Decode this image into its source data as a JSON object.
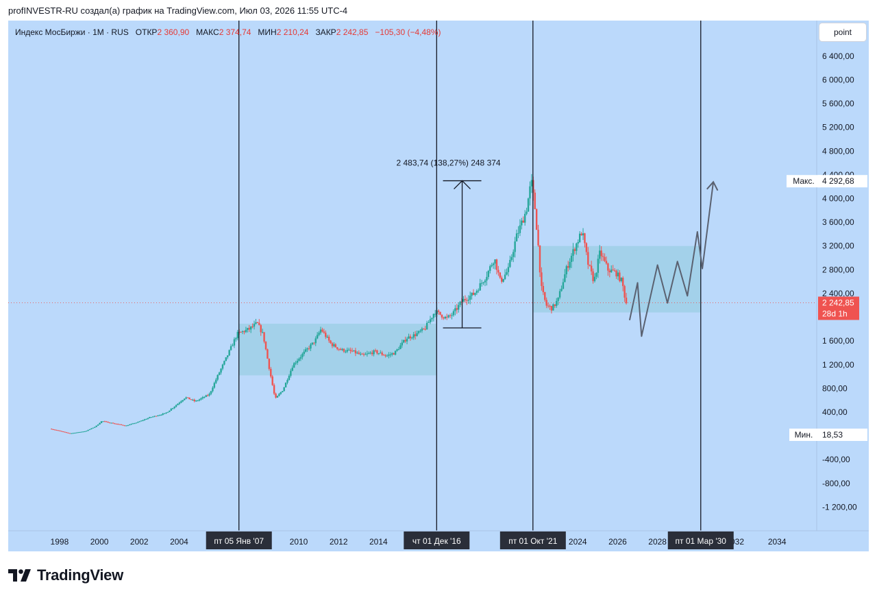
{
  "header": {
    "attribution": "profINVESTR-RU создал(а) график на TradingView.com, Июл 03, 2026 11:55 UTC-4"
  },
  "legend": {
    "symbol": "Индекс МосБиржи · 1M · RUS",
    "open_label": "ОТКР",
    "open": "2 360,90",
    "high_label": "МАКС",
    "high": "2 374,74",
    "low_label": "МИН",
    "low": "2 210,24",
    "close_label": "ЗАКР",
    "close": "2 242,85",
    "change": "−105,30 (−4,48%)"
  },
  "toolbar": {
    "point_label": "point"
  },
  "brand": {
    "name": "TradingView",
    "icon": "tradingview-logo-icon"
  },
  "colors": {
    "background": "#bbd9fb",
    "up": "#26a69a",
    "down": "#ef5350",
    "zone": "#9fcfe6",
    "line": "#131722",
    "projection": "#5a6170"
  },
  "chart_data": {
    "type": "candlestick",
    "timeframe": "1M",
    "xlim": [
      1996.8,
      2035.3
    ],
    "ylim": [
      -1600,
      7000
    ],
    "x_ticks": [
      {
        "year": 1998,
        "label": "1998"
      },
      {
        "year": 2000,
        "label": "2000"
      },
      {
        "year": 2002,
        "label": "2002"
      },
      {
        "year": 2004,
        "label": "2004"
      },
      {
        "year": 2010,
        "label": "2010"
      },
      {
        "year": 2012,
        "label": "2012"
      },
      {
        "year": 2014,
        "label": "2014"
      },
      {
        "year": 2024,
        "label": "2024"
      },
      {
        "year": 2026,
        "label": "2026"
      },
      {
        "year": 2028,
        "label": "2028"
      },
      {
        "year": 2032,
        "label": "032"
      },
      {
        "year": 2034,
        "label": "2034"
      }
    ],
    "y_ticks": [
      {
        "value": 6400,
        "label": "6 400,00"
      },
      {
        "value": 6000,
        "label": "6 000,00"
      },
      {
        "value": 5600,
        "label": "5 600,00"
      },
      {
        "value": 5200,
        "label": "5 200,00"
      },
      {
        "value": 4800,
        "label": "4 800,00"
      },
      {
        "value": 4400,
        "label": "4 400,00"
      },
      {
        "value": 4000,
        "label": "4 000,00"
      },
      {
        "value": 3600,
        "label": "3 600,00"
      },
      {
        "value": 3200,
        "label": "3 200,00"
      },
      {
        "value": 2800,
        "label": "2 800,00"
      },
      {
        "value": 2400,
        "label": "2 400,00"
      },
      {
        "value": 1600,
        "label": "1 600,00"
      },
      {
        "value": 1200,
        "label": "1 200,00"
      },
      {
        "value": 800,
        "label": "800,00"
      },
      {
        "value": 400,
        "label": "400,00"
      },
      {
        "value": -400,
        "label": "-400,00"
      },
      {
        "value": -800,
        "label": "-800,00"
      },
      {
        "value": -1200,
        "label": "-1 200,00"
      }
    ],
    "price_path": [
      [
        1997.6,
        120
      ],
      [
        1998.0,
        90
      ],
      [
        1998.6,
        40
      ],
      [
        1999.4,
        80
      ],
      [
        1999.9,
        160
      ],
      [
        2000.2,
        250
      ],
      [
        2000.8,
        210
      ],
      [
        2001.4,
        170
      ],
      [
        2002.0,
        230
      ],
      [
        2002.6,
        310
      ],
      [
        2003.4,
        380
      ],
      [
        2003.9,
        510
      ],
      [
        2004.4,
        650
      ],
      [
        2004.9,
        580
      ],
      [
        2005.6,
        700
      ],
      [
        2006.0,
        1000
      ],
      [
        2006.5,
        1350
      ],
      [
        2007.0,
        1720
      ],
      [
        2007.6,
        1800
      ],
      [
        2008.0,
        1900
      ],
      [
        2008.3,
        1700
      ],
      [
        2008.6,
        1150
      ],
      [
        2008.9,
        620
      ],
      [
        2009.3,
        780
      ],
      [
        2009.8,
        1200
      ],
      [
        2010.4,
        1420
      ],
      [
        2010.9,
        1600
      ],
      [
        2011.2,
        1800
      ],
      [
        2011.7,
        1550
      ],
      [
        2012.2,
        1450
      ],
      [
        2012.8,
        1420
      ],
      [
        2013.3,
        1350
      ],
      [
        2013.9,
        1420
      ],
      [
        2014.5,
        1350
      ],
      [
        2014.9,
        1400
      ],
      [
        2015.5,
        1650
      ],
      [
        2015.9,
        1700
      ],
      [
        2016.4,
        1800
      ],
      [
        2016.92,
        2100
      ],
      [
        2017.5,
        1980
      ],
      [
        2017.8,
        2050
      ],
      [
        2018.3,
        2280
      ],
      [
        2018.9,
        2400
      ],
      [
        2019.5,
        2700
      ],
      [
        2019.9,
        3000
      ],
      [
        2020.2,
        2600
      ],
      [
        2020.6,
        2800
      ],
      [
        2021.0,
        3350
      ],
      [
        2021.5,
        3800
      ],
      [
        2021.75,
        4292
      ],
      [
        2021.95,
        3800
      ],
      [
        2022.1,
        3200
      ],
      [
        2022.25,
        2500
      ],
      [
        2022.5,
        2200
      ],
      [
        2022.8,
        2150
      ],
      [
        2023.1,
        2300
      ],
      [
        2023.5,
        2800
      ],
      [
        2023.9,
        3150
      ],
      [
        2024.3,
        3450
      ],
      [
        2024.6,
        2900
      ],
      [
        2024.9,
        2600
      ],
      [
        2025.2,
        3100
      ],
      [
        2025.6,
        2800
      ],
      [
        2026.0,
        2750
      ],
      [
        2026.3,
        2600
      ],
      [
        2026.5,
        2243
      ]
    ],
    "projection_path": [
      [
        2026.6,
        1950
      ],
      [
        2027.0,
        2580
      ],
      [
        2027.2,
        1680
      ],
      [
        2028.0,
        2880
      ],
      [
        2028.5,
        2240
      ],
      [
        2029.0,
        2940
      ],
      [
        2029.5,
        2360
      ],
      [
        2030.0,
        3440
      ],
      [
        2030.25,
        2820
      ],
      [
        2030.8,
        4280
      ]
    ],
    "range_zones": [
      {
        "x0": 2007.0,
        "x1": 2016.92,
        "y0": 1020,
        "y1": 1890
      },
      {
        "x0": 2021.75,
        "x1": 2030.17,
        "y0": 2080,
        "y1": 3200
      }
    ],
    "event_lines": [
      {
        "x": 2007.0,
        "label": "пт 05 Янв '07"
      },
      {
        "x": 2016.92,
        "label": "чт 01 Дек '16"
      },
      {
        "x": 2021.75,
        "label": "пт 01 Окт '21"
      },
      {
        "x": 2030.17,
        "label": "пт 01 Мар '30"
      }
    ],
    "measure": {
      "x": 2018.2,
      "y0": 1820,
      "y1": 4300,
      "label": "2 483,74 (138,27%) 248 374"
    },
    "current_price": {
      "value": 2242.85,
      "label": "2 242,85",
      "countdown": "28d 1h"
    },
    "max_marker": {
      "value": 4292.68,
      "label_prefix": "Макс.",
      "label": "4 292,68"
    },
    "min_marker": {
      "value": 18.53,
      "label_prefix": "Мин.",
      "label": "18,53"
    }
  }
}
